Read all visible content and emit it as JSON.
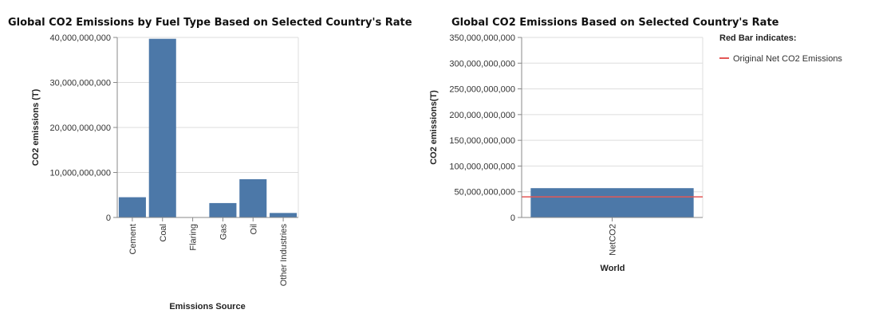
{
  "colors": {
    "bar": "#4c78a8",
    "grid": "#dddddd",
    "axis": "#888888",
    "ref_line": "#e45756"
  },
  "chart_data": [
    {
      "type": "bar",
      "title": "Global CO2 Emissions by Fuel Type Based on Selected Country's Rate",
      "xlabel": "Emissions Source",
      "ylabel": "CO2 emissions (T)",
      "categories": [
        "Cement",
        "Coal",
        "Flaring",
        "Gas",
        "Oil",
        "Other Industries"
      ],
      "values": [
        4500000000,
        39700000000,
        0,
        3200000000,
        8500000000,
        1000000000
      ],
      "ylim": [
        0,
        40000000000
      ],
      "yticks": [
        0,
        10000000000,
        20000000000,
        30000000000,
        40000000000
      ],
      "ytick_labels": [
        "0",
        "10,000,000,000",
        "20,000,000,000",
        "30,000,000,000",
        "40,000,000,000"
      ],
      "grid": true
    },
    {
      "type": "bar",
      "title": "Global CO2 Emissions Based on Selected Country's Rate",
      "xlabel": "World",
      "ylabel": "CO2 emissions(T)",
      "categories": [
        "NetCO2"
      ],
      "values": [
        57000000000
      ],
      "reference_line": 40000000000,
      "ylim": [
        0,
        350000000000
      ],
      "yticks": [
        0,
        50000000000,
        100000000000,
        150000000000,
        200000000000,
        250000000000,
        300000000000,
        350000000000
      ],
      "ytick_labels": [
        "0",
        "50,000,000,000",
        "100,000,000,000",
        "150,000,000,000",
        "200,000,000,000",
        "250,000,000,000",
        "300,000,000,000",
        "350,000,000,000"
      ],
      "grid": true,
      "legend": {
        "title": "Red Bar indicates:",
        "items": [
          "Original Net CO2 Emissions"
        ],
        "position": "top-right"
      }
    }
  ]
}
